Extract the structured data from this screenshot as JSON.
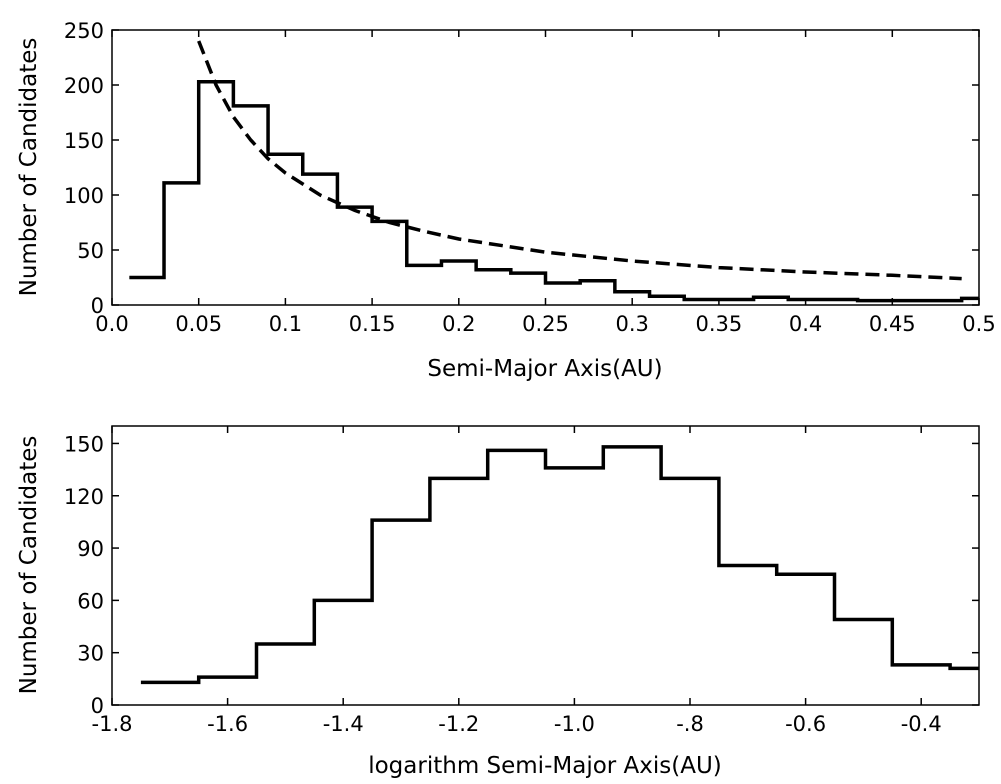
{
  "chart_data": [
    {
      "type": "histogram",
      "xlabel": "Semi-Major Axis(AU)",
      "ylabel": "Number of Candidates",
      "xlim": [
        0,
        0.5
      ],
      "ylim": [
        0,
        250
      ],
      "xticks": [
        0,
        0.05,
        0.1,
        0.15,
        0.2,
        0.25,
        0.3,
        0.35,
        0.4,
        0.45,
        0.5
      ],
      "xtick_labels": [
        "0.0",
        "0.05",
        "0.1",
        "0.15",
        "0.2",
        "0.25",
        "0.3",
        "0.35",
        "0.4",
        "0.45",
        "0.5"
      ],
      "yticks": [
        0,
        50,
        100,
        150,
        200,
        250
      ],
      "ytick_labels": [
        "0",
        "50",
        "100",
        "150",
        "200",
        "250"
      ],
      "bin_edges": [
        0.01,
        0.03,
        0.05,
        0.07,
        0.09,
        0.11,
        0.13,
        0.15,
        0.17,
        0.19,
        0.21,
        0.23,
        0.25,
        0.27,
        0.29,
        0.31,
        0.33,
        0.35,
        0.37,
        0.39,
        0.41,
        0.43,
        0.45,
        0.47,
        0.49,
        0.5
      ],
      "counts": [
        25,
        111,
        203,
        181,
        137,
        119,
        89,
        76,
        36,
        40,
        32,
        29,
        20,
        22,
        12,
        8,
        5,
        5,
        7,
        5,
        5,
        4,
        4,
        4,
        6
      ],
      "fit_curve": {
        "style": "dashed",
        "x": [
          0.05,
          0.06,
          0.07,
          0.08,
          0.09,
          0.1,
          0.12,
          0.14,
          0.16,
          0.18,
          0.2,
          0.25,
          0.3,
          0.35,
          0.4,
          0.45,
          0.49
        ],
        "y": [
          240,
          200,
          171,
          150,
          133,
          120,
          100,
          86,
          75,
          67,
          60,
          48,
          40,
          34,
          30,
          27,
          24
        ]
      }
    },
    {
      "type": "histogram",
      "xlabel": "logarithm Semi-Major Axis(AU)",
      "ylabel": "Number of Candidates",
      "xlim": [
        -1.8,
        -0.3
      ],
      "ylim": [
        0,
        160
      ],
      "xticks": [
        -1.8,
        -1.6,
        -1.4,
        -1.2,
        -1.0,
        -0.8,
        -0.6,
        -0.4
      ],
      "xtick_labels": [
        "-1.8",
        "-1.6",
        "-1.4",
        "-1.2",
        "-1.0",
        "-.8",
        "-0.6",
        "-0.4"
      ],
      "yticks": [
        0,
        30,
        60,
        90,
        120,
        150
      ],
      "ytick_labels": [
        "0",
        "30",
        "60",
        "90",
        "120",
        "150"
      ],
      "bin_edges": [
        -1.75,
        -1.65,
        -1.55,
        -1.45,
        -1.35,
        -1.25,
        -1.15,
        -1.05,
        -0.95,
        -0.85,
        -0.75,
        -0.65,
        -0.55,
        -0.45,
        -0.35,
        -0.3
      ],
      "counts": [
        13,
        16,
        35,
        60,
        106,
        130,
        146,
        136,
        148,
        130,
        80,
        75,
        49,
        23,
        21
      ]
    }
  ]
}
